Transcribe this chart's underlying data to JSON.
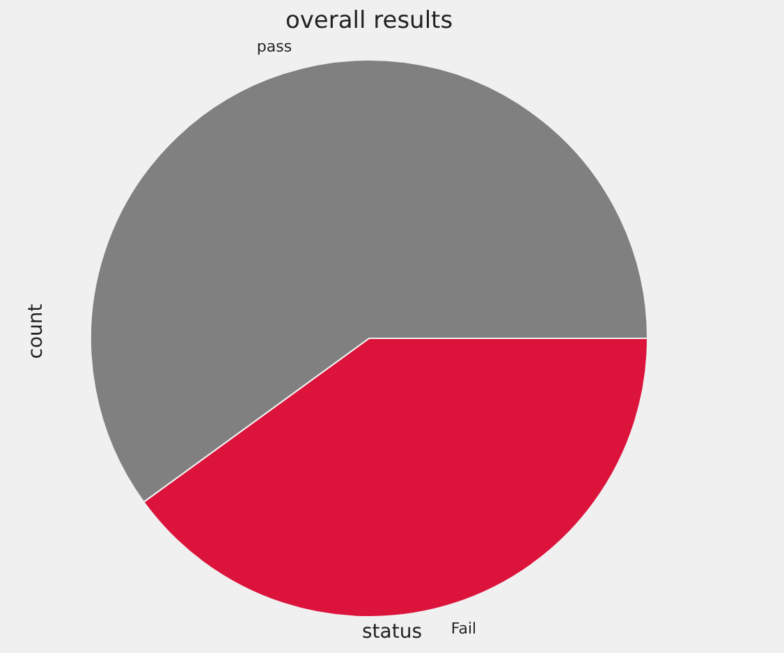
{
  "chart_data": {
    "type": "pie",
    "title": "overall results",
    "xlabel": "status",
    "ylabel": "count",
    "categories": [
      "Fail",
      "pass"
    ],
    "values": [
      40,
      60
    ],
    "colors": [
      "#dc143c",
      "#808080"
    ],
    "legend": false
  }
}
